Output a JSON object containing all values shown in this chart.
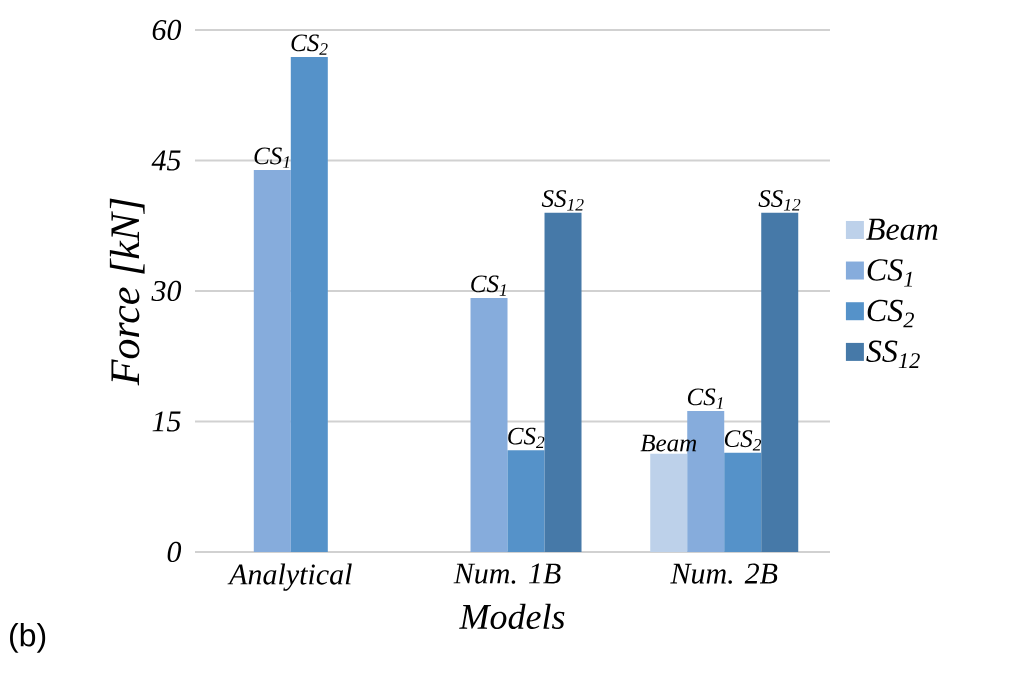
{
  "chart_data": {
    "type": "bar",
    "xlabel": "Models",
    "ylabel": "Force [kN]",
    "categories": [
      "Analytical",
      "Num. 1B",
      "Num. 2B"
    ],
    "series": [
      {
        "name": "Beam",
        "color": "#bdd1ea",
        "values": [
          null,
          null,
          11.3
        ]
      },
      {
        "name": "CS$_{1}$",
        "color": "#86acdc",
        "values": [
          43.9,
          29.2,
          16.2
        ]
      },
      {
        "name": "CS$_{2}$",
        "color": "#5592c9",
        "values": [
          56.9,
          11.7,
          11.4
        ]
      },
      {
        "name": "SS$_{12}$",
        "color": "#4679a8",
        "values": [
          null,
          39.0,
          39.0
        ]
      }
    ],
    "ylim": [
      0,
      60
    ],
    "yticks": [
      0,
      15,
      30,
      45,
      60
    ],
    "grid": "y",
    "legend": "right",
    "annotations": [
      {
        "text": "CS$_{1}$",
        "x": "Analytical",
        "y": 43.9
      },
      {
        "text": "CS$_{2}$",
        "x": "Analytical",
        "y": 56.9
      },
      {
        "text": "CS$_{1}$",
        "x": "Num. 1B",
        "y": 29.2
      },
      {
        "text": "CS$_{2}$",
        "x": "Num. 1B",
        "y": 11.7
      },
      "SS$_{12}$",
      {
        "text": "Beam",
        "x": "Num. 2B",
        "y": 11.3
      },
      {
        "text": "CS$_{1}$",
        "x": "Num. 2B",
        "y": 16.2
      },
      {
        "text": "CS$_{2}$",
        "x": "Num. 2B",
        "y": 11.4
      },
      "SS$_{12}$",
      "(b)"
    ]
  }
}
